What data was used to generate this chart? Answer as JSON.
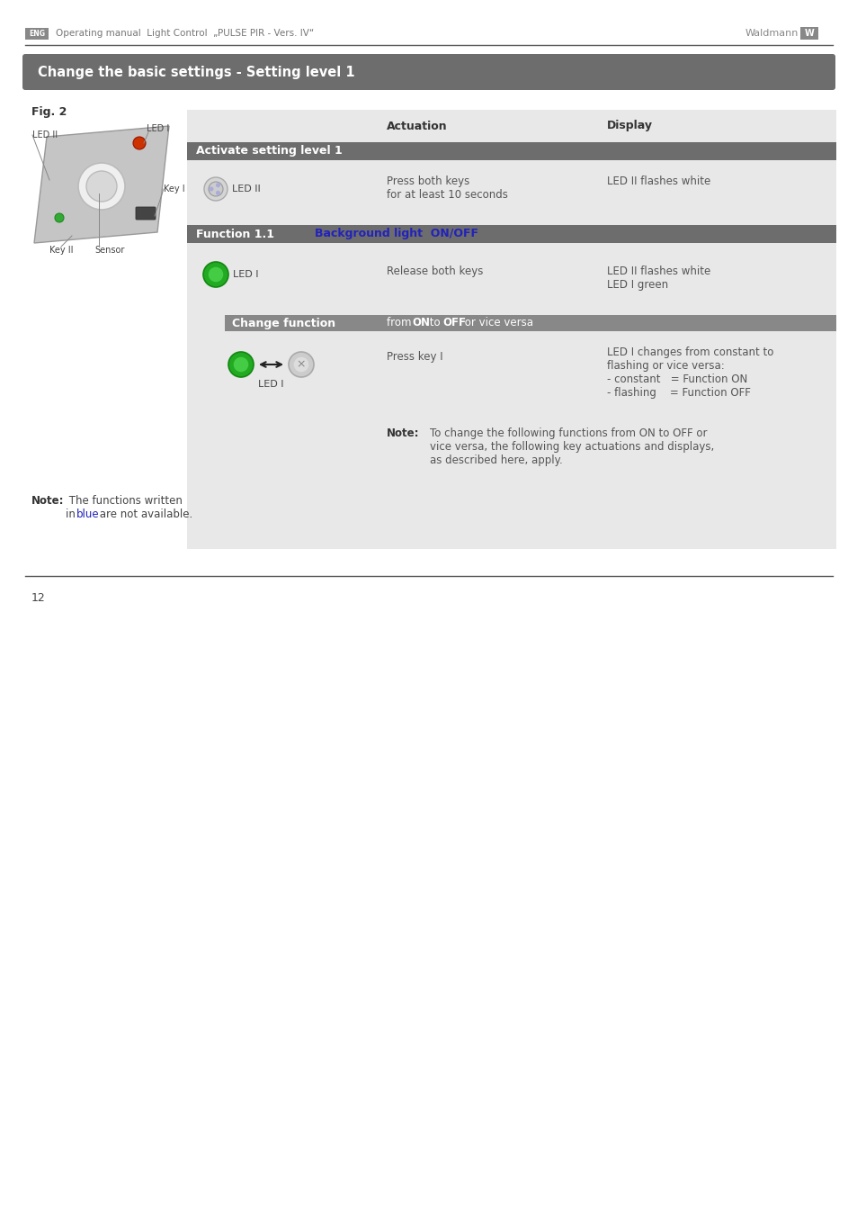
{
  "page_bg": "#ffffff",
  "header_line_color": "#555555",
  "title_bar_text": "Change the basic settings - Setting level 1",
  "title_bar_bg": "#6d6d6d",
  "section1_title": "Activate setting level 1",
  "section2_title": "Function 1.1",
  "section2_blue": "Background light  ON/OFF",
  "section3_title": "Change function",
  "page_number": "12",
  "blue_color": "#2222bb",
  "table_bg": "#e8e8e8",
  "dark_bar_bg": "#6d6d6d",
  "medium_bar_bg": "#888888",
  "text_dark": "#333333",
  "text_med": "#555555",
  "white": "#ffffff"
}
